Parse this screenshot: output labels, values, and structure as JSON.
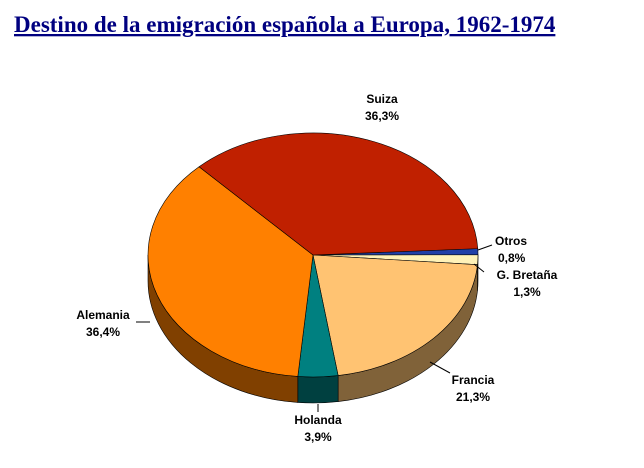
{
  "chart_data": {
    "type": "pie",
    "title": "Destino de la emigración española a Europa, 1962-1974",
    "categories": [
      "Otros",
      "G. Bretaña",
      "Francia",
      "Holanda",
      "Alemania",
      "Suiza"
    ],
    "values": [
      0.8,
      1.3,
      21.3,
      3.9,
      36.4,
      36.3
    ],
    "value_labels": [
      "0,8%",
      "1,3%",
      "21,3%",
      "3,9%",
      "36,4%",
      "36,3%"
    ],
    "colors": [
      "#2040a8",
      "#fff2b8",
      "#ffc372",
      "#008080",
      "#ff8000",
      "#c02000"
    ]
  }
}
